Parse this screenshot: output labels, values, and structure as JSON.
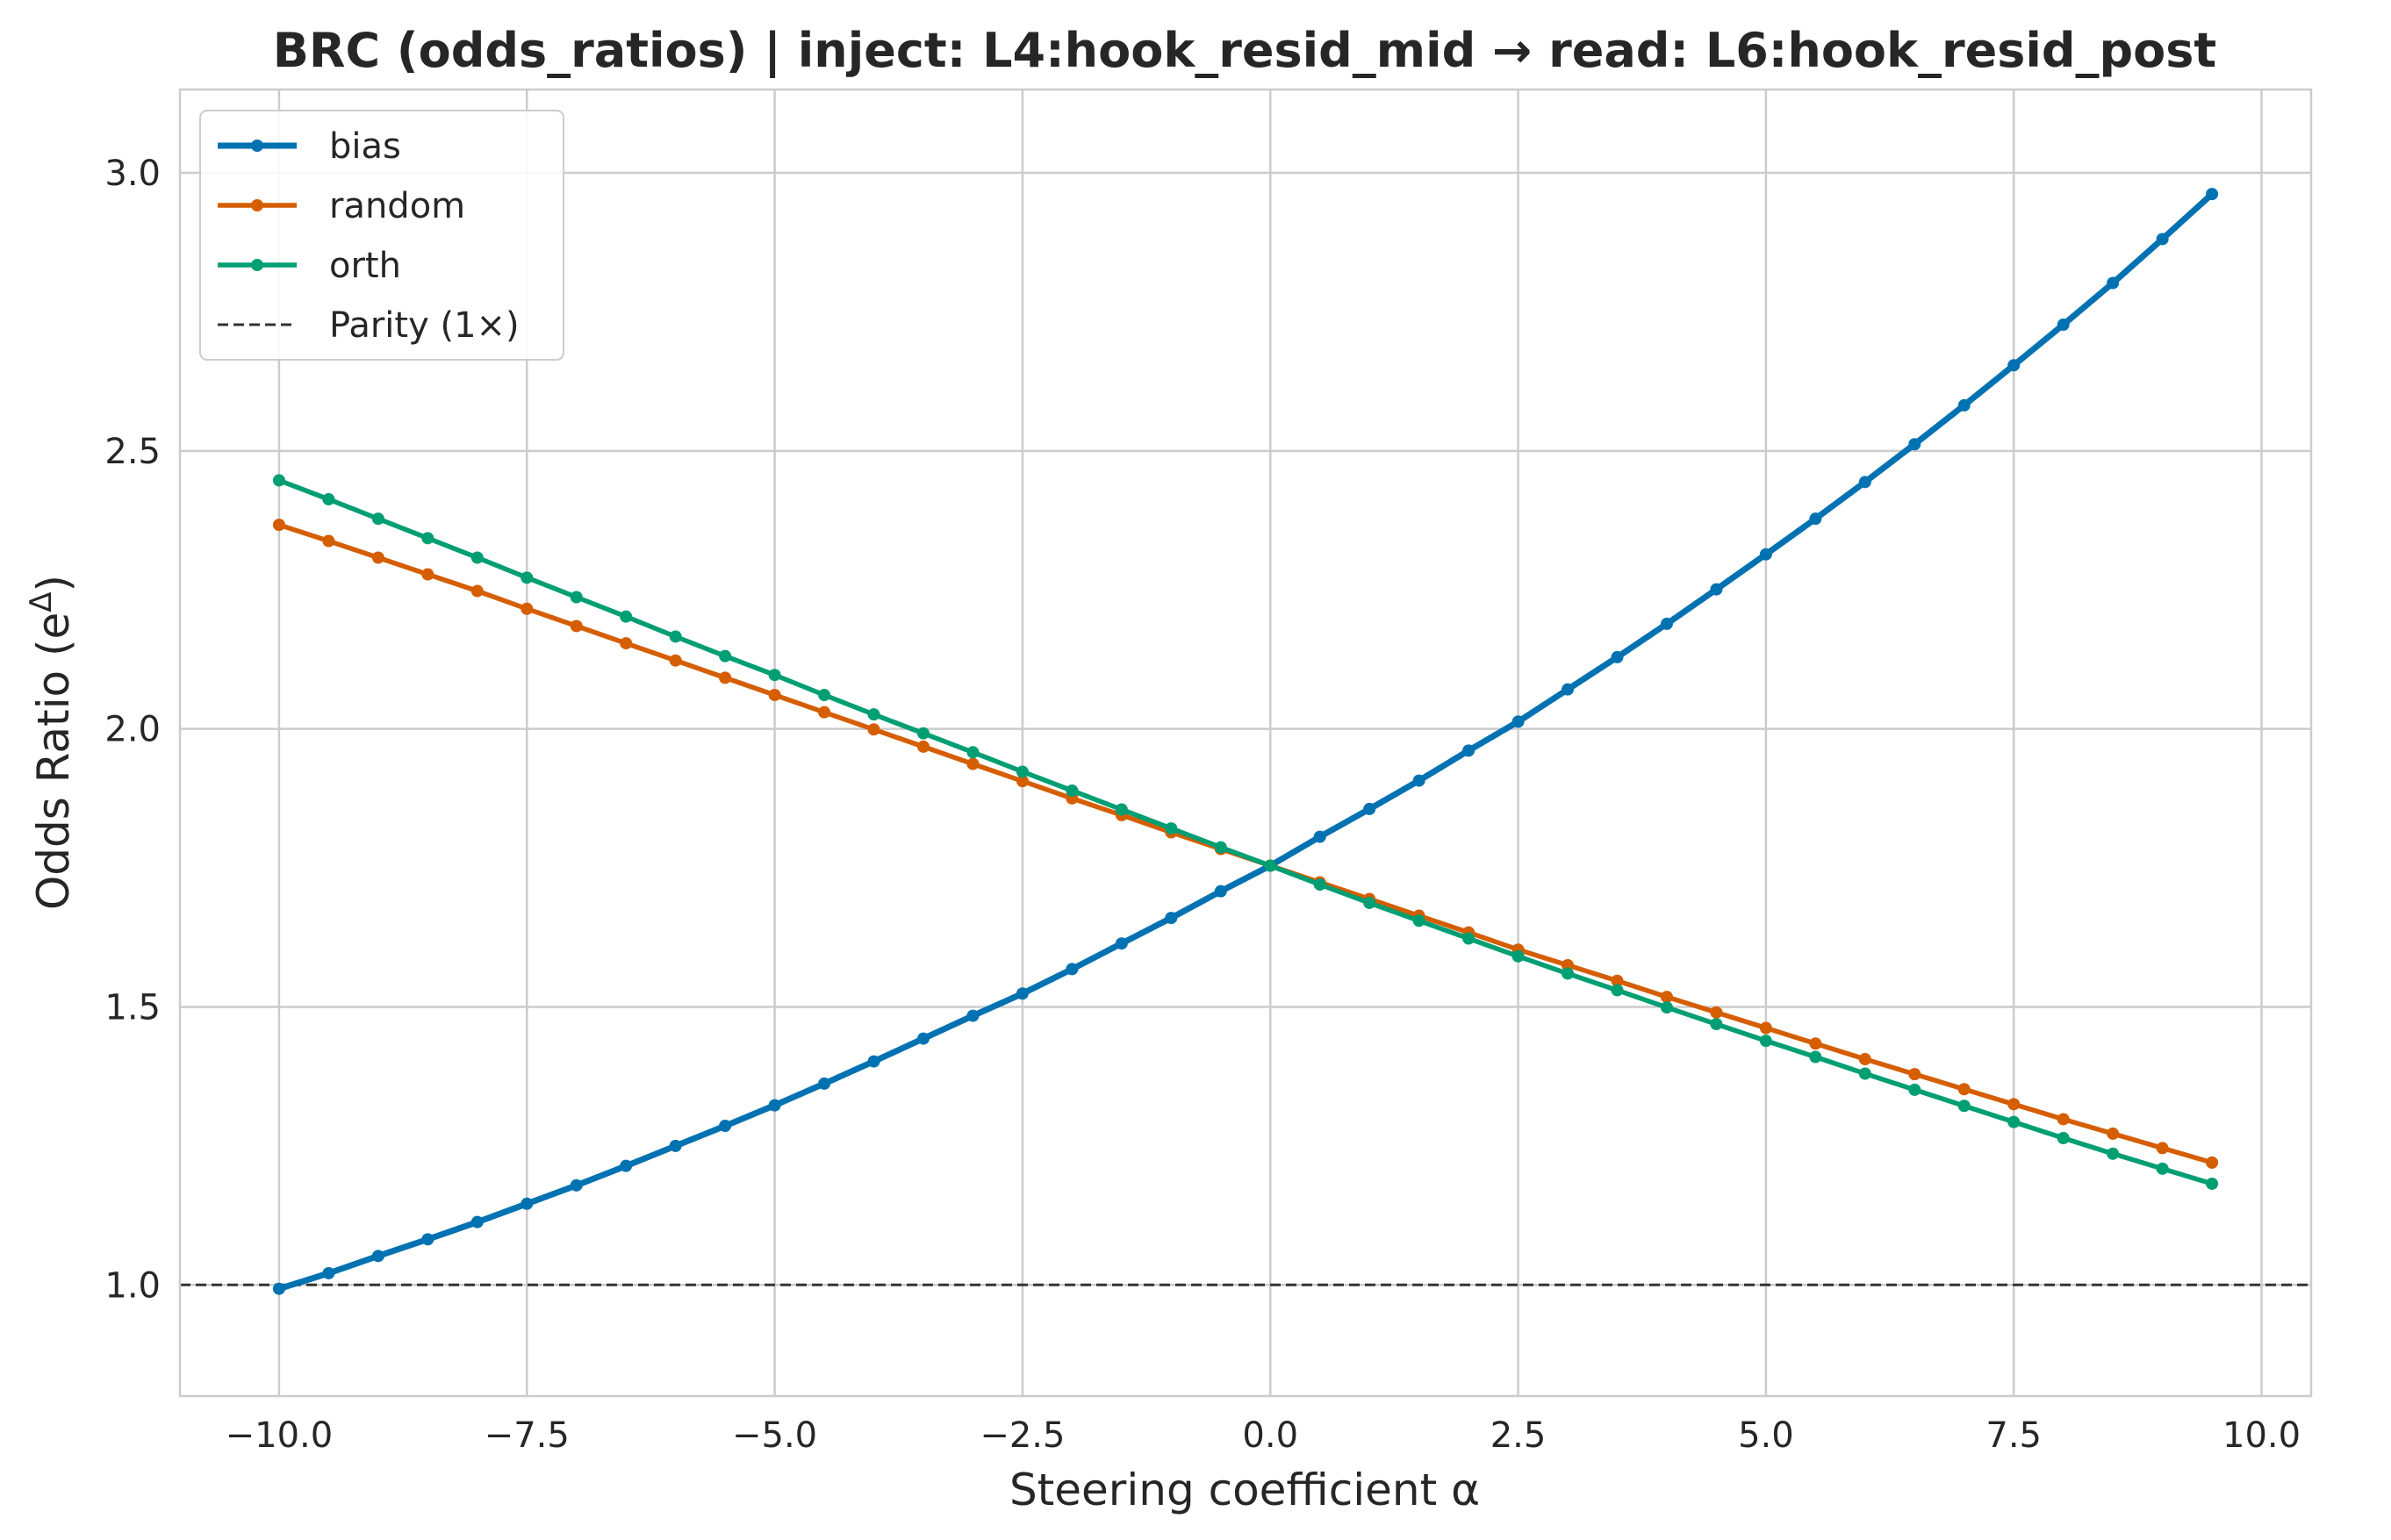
{
  "chart_data": {
    "type": "line",
    "title": "BRC (odds_ratios) | inject: L4:hook_resid_mid → read: L6:hook_resid_post",
    "xlabel": "Steering coefficient α",
    "ylabel_main": "Odds Ratio (e",
    "ylabel_sup": "Δ",
    "ylabel_close": ")",
    "xlim": [
      -11.0,
      10.5
    ],
    "ylim": [
      0.8,
      3.15
    ],
    "xticks": [
      -10.0,
      -7.5,
      -5.0,
      -2.5,
      0.0,
      2.5,
      5.0,
      7.5,
      10.0
    ],
    "xtick_labels": [
      "−10.0",
      "−7.5",
      "−5.0",
      "−2.5",
      "0.0",
      "2.5",
      "5.0",
      "7.5",
      "10.0"
    ],
    "yticks": [
      1.0,
      1.5,
      2.0,
      2.5,
      3.0
    ],
    "ytick_labels": [
      "1.0",
      "1.5",
      "2.0",
      "2.5",
      "3.0"
    ],
    "grid": true,
    "legend_position": "top-left",
    "x": [
      -10.0,
      -9.5,
      -9.0,
      -8.5,
      -8.0,
      -7.5,
      -7.0,
      -6.5,
      -6.0,
      -5.5,
      -5.0,
      -4.5,
      -4.0,
      -3.5,
      -3.0,
      -2.5,
      -2.0,
      -1.5,
      -1.0,
      -0.5,
      0.0,
      0.5,
      1.0,
      1.5,
      2.0,
      2.5,
      3.0,
      3.5,
      4.0,
      4.5,
      5.0,
      5.5,
      6.0,
      6.5,
      7.0,
      7.5,
      8.0,
      8.5,
      9.0,
      9.5
    ],
    "series": [
      {
        "name": "bias",
        "color": "#0072b2",
        "width": 7,
        "values": [
          0.993,
          1.021,
          1.052,
          1.082,
          1.113,
          1.146,
          1.179,
          1.214,
          1.25,
          1.286,
          1.323,
          1.362,
          1.402,
          1.443,
          1.484,
          1.524,
          1.568,
          1.614,
          1.66,
          1.708,
          1.754,
          1.806,
          1.856,
          1.907,
          1.961,
          2.013,
          2.071,
          2.129,
          2.189,
          2.251,
          2.314,
          2.378,
          2.444,
          2.512,
          2.582,
          2.654,
          2.727,
          2.802,
          2.881,
          2.962
        ]
      },
      {
        "name": "random",
        "color": "#d55e00",
        "width": 5.5,
        "values": [
          2.367,
          2.338,
          2.308,
          2.278,
          2.248,
          2.216,
          2.185,
          2.154,
          2.123,
          2.092,
          2.061,
          2.03,
          1.999,
          1.968,
          1.937,
          1.906,
          1.875,
          1.845,
          1.814,
          1.784,
          1.754,
          1.724,
          1.694,
          1.664,
          1.634,
          1.603,
          1.575,
          1.547,
          1.518,
          1.49,
          1.462,
          1.434,
          1.406,
          1.379,
          1.352,
          1.325,
          1.298,
          1.272,
          1.246,
          1.22
        ]
      },
      {
        "name": "orth",
        "color": "#009e73",
        "width": 5.5,
        "values": [
          2.447,
          2.413,
          2.378,
          2.343,
          2.308,
          2.272,
          2.237,
          2.202,
          2.166,
          2.131,
          2.097,
          2.061,
          2.026,
          1.992,
          1.958,
          1.923,
          1.889,
          1.855,
          1.821,
          1.787,
          1.754,
          1.72,
          1.687,
          1.655,
          1.623,
          1.591,
          1.56,
          1.53,
          1.499,
          1.469,
          1.439,
          1.41,
          1.38,
          1.351,
          1.322,
          1.293,
          1.264,
          1.236,
          1.209,
          1.182
        ]
      }
    ],
    "reference_line": {
      "name": "Parity (1×)",
      "y": 1.0,
      "color": "#333333",
      "style": "dashed"
    }
  }
}
